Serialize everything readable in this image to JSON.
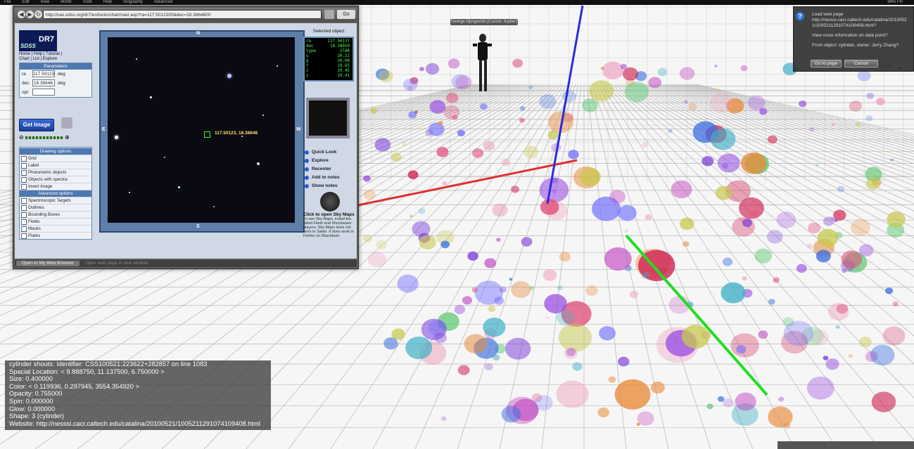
{
  "menubar": {
    "items": [
      "File",
      "Edit",
      "View",
      "World",
      "Tools",
      "Help",
      "Singularity",
      "Advanced"
    ],
    "right": "99% FR "
  },
  "browser": {
    "url": "http://cas.sdss.org/dr7/en/tools/chart/navi.asp?ra=117.5012300&dec=18.3864600",
    "go_label": "Go",
    "open_button": "Open in My Web Browser",
    "status_text": "Open web page in new window"
  },
  "sdss": {
    "logo_title": "DR7",
    "logo_sub": "SDSS",
    "toplinks": "Home | Help | Tutorial | Chart | List | Explore",
    "params_title": "Parameters",
    "ra_label": "ra",
    "ra_value": "117.50123",
    "dec_label": "dec",
    "dec_value": "18.38646",
    "unit": "deg",
    "opt_label": "opt",
    "get_image": "Get Image",
    "drawing_title": "Drawing options",
    "drawing_options": [
      "Grid",
      "Label",
      "Photometric objects",
      "Objects with spectra",
      "Invert Image"
    ],
    "advanced_title": "Advanced options",
    "advanced_options": [
      "Spectroscopic Targets",
      "Outlines",
      "Bounding Boxes",
      "Fields",
      "Masks",
      "Plates"
    ],
    "compass": {
      "n": "N",
      "s": "S",
      "e": "E",
      "w": "W"
    },
    "coord_label": "117.50123, 18.38646",
    "selected_title": "Selected object",
    "selected": [
      {
        "k": "ra",
        "v": "117.50137"
      },
      {
        "k": "dec",
        "v": "18.38650"
      },
      {
        "k": "type",
        "v": "STAR"
      },
      {
        "k": "u",
        "v": "20.22"
      },
      {
        "k": "g",
        "v": "20.08"
      },
      {
        "k": "r",
        "v": "19.65"
      },
      {
        "k": "i",
        "v": "19.45"
      },
      {
        "k": "z",
        "v": "19.41"
      }
    ],
    "tools": [
      "Quick Look",
      "Explore",
      "Recenter",
      "Add to notes",
      "Show notes"
    ],
    "skymap_title": "Click to open Sky Maps",
    "skymap_text": "To see Sky Maps, install the latest Flash and Shockwave players. Sky Maps does not work in Safari. It does work in Firefox on Macintosh."
  },
  "dialog": {
    "title": "Load web page",
    "url": "http://nesssi.cacr.caltech.edu/catalina/20100521/1005211291074109408.html?",
    "question": "View more information on data point?",
    "from": "From object: cylinder, owner: Jerry Zhang?",
    "goto": "Go to page",
    "cancel": "Cancel"
  },
  "avatar": {
    "name": "George Djorgovski (Curzon Jupiter)"
  },
  "chat": {
    "lines": [
      "cylinder shouts: Identifier: CSS100521:223622+282857 on line 1083",
      "Spacial Location: < 9.888750, 11.137500, 6.750000 >",
      "Size: 0.400000",
      "Color: < 0.119936, 0.297945, 3554.354920 >",
      "Opacity: 0.755000",
      "Spin: 0.000000",
      "Glow: 0.000000",
      "Shape: 3 (cylinder)",
      "Website: http://nesssi.cacr.caltech.edu/catalina/20100521/1005211291074109408.html"
    ]
  },
  "colors": {
    "x_axis": "#e03030",
    "y_axis": "#2a2ae0",
    "z_axis": "#22dd22",
    "grid": "#555555"
  }
}
